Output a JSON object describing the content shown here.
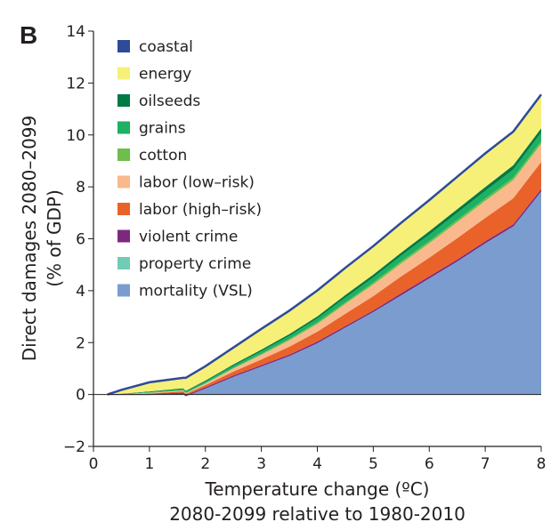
{
  "panel_label": "B",
  "chart_data": {
    "type": "area",
    "xlabel_line1": "Temperature change (ºC)",
    "xlabel_line2": "2080-2099 relative to 1980-2010",
    "ylabel_line1": "Direct damages 2080–2099",
    "ylabel_line2": "(% of GDP)",
    "xlim": [
      0,
      8
    ],
    "ylim": [
      -2,
      14
    ],
    "xticks": [
      0,
      1,
      2,
      3,
      4,
      5,
      6,
      7,
      8
    ],
    "yticks": [
      -2,
      0,
      2,
      4,
      6,
      8,
      10,
      12,
      14
    ],
    "grid": false,
    "legend_position": "top-left",
    "x": [
      0.25,
      0.5,
      1.0,
      1.6,
      1.65,
      2.0,
      2.5,
      3.0,
      3.5,
      4.0,
      4.5,
      5.0,
      5.5,
      6.0,
      6.5,
      7.0,
      7.5,
      8.0
    ],
    "series": [
      {
        "name": "mortality (VSL)",
        "color": "#7b9cce",
        "values": [
          0.0,
          0.0,
          0.0,
          0.05,
          -0.05,
          0.25,
          0.7,
          1.1,
          1.5,
          2.0,
          2.6,
          3.2,
          3.85,
          4.5,
          5.15,
          5.85,
          6.5,
          7.85
        ]
      },
      {
        "name": "property crime",
        "color": "#72cbb5",
        "values": [
          0.0,
          0.0,
          0.0,
          0.0,
          0.0,
          0.0,
          0.0,
          0.0,
          0.0,
          0.0,
          0.0,
          0.0,
          0.0,
          0.0,
          0.0,
          0.0,
          0.0,
          0.0
        ]
      },
      {
        "name": "violent crime",
        "color": "#7d2880",
        "values": [
          0.0,
          0.0,
          0.01,
          0.02,
          0.02,
          0.03,
          0.03,
          0.03,
          0.04,
          0.04,
          0.04,
          0.04,
          0.05,
          0.05,
          0.05,
          0.05,
          0.06,
          0.06
        ]
      },
      {
        "name": "labor (high–risk)",
        "color": "#e8622a",
        "values": [
          0.0,
          0.0,
          0.03,
          0.05,
          0.05,
          0.08,
          0.15,
          0.22,
          0.3,
          0.38,
          0.47,
          0.55,
          0.65,
          0.72,
          0.82,
          0.9,
          1.0,
          1.05
        ]
      },
      {
        "name": "labor (low–risk)",
        "color": "#f9b98c",
        "values": [
          0.0,
          0.0,
          0.02,
          0.03,
          0.03,
          0.06,
          0.12,
          0.18,
          0.25,
          0.3,
          0.38,
          0.45,
          0.5,
          0.56,
          0.62,
          0.66,
          0.7,
          0.7
        ]
      },
      {
        "name": "cotton",
        "color": "#6dbe4b",
        "values": [
          0.0,
          0.01,
          0.02,
          0.02,
          0.02,
          0.02,
          0.03,
          0.04,
          0.05,
          0.06,
          0.06,
          0.07,
          0.08,
          0.08,
          0.09,
          0.09,
          0.1,
          0.1
        ]
      },
      {
        "name": "grains",
        "color": "#1eb063",
        "values": [
          0.0,
          0.01,
          0.02,
          0.04,
          0.04,
          0.06,
          0.08,
          0.1,
          0.12,
          0.15,
          0.18,
          0.2,
          0.22,
          0.25,
          0.27,
          0.29,
          0.31,
          0.33
        ]
      },
      {
        "name": "oilseeds",
        "color": "#007a45",
        "values": [
          0.0,
          0.01,
          0.02,
          0.03,
          0.03,
          0.04,
          0.05,
          0.06,
          0.07,
          0.08,
          0.1,
          0.11,
          0.12,
          0.13,
          0.14,
          0.15,
          0.16,
          0.17
        ]
      },
      {
        "name": "energy",
        "color": "#f6f079",
        "values": [
          0.0,
          0.15,
          0.35,
          0.4,
          0.5,
          0.55,
          0.65,
          0.8,
          0.9,
          1.0,
          1.05,
          1.1,
          1.15,
          1.2,
          1.25,
          1.3,
          1.3,
          1.3
        ]
      },
      {
        "name": "coastal",
        "color": "#2e4a9a",
        "values": [
          0.0,
          0.0,
          0.0,
          0.0,
          0.0,
          0.0,
          0.0,
          0.0,
          0.0,
          0.0,
          0.0,
          0.0,
          0.0,
          0.0,
          0.0,
          0.0,
          0.0,
          0.0
        ]
      }
    ],
    "legend_order": [
      "coastal",
      "energy",
      "oilseeds",
      "grains",
      "cotton",
      "labor (low–risk)",
      "labor (high–risk)",
      "violent crime",
      "property crime",
      "mortality (VSL)"
    ]
  }
}
